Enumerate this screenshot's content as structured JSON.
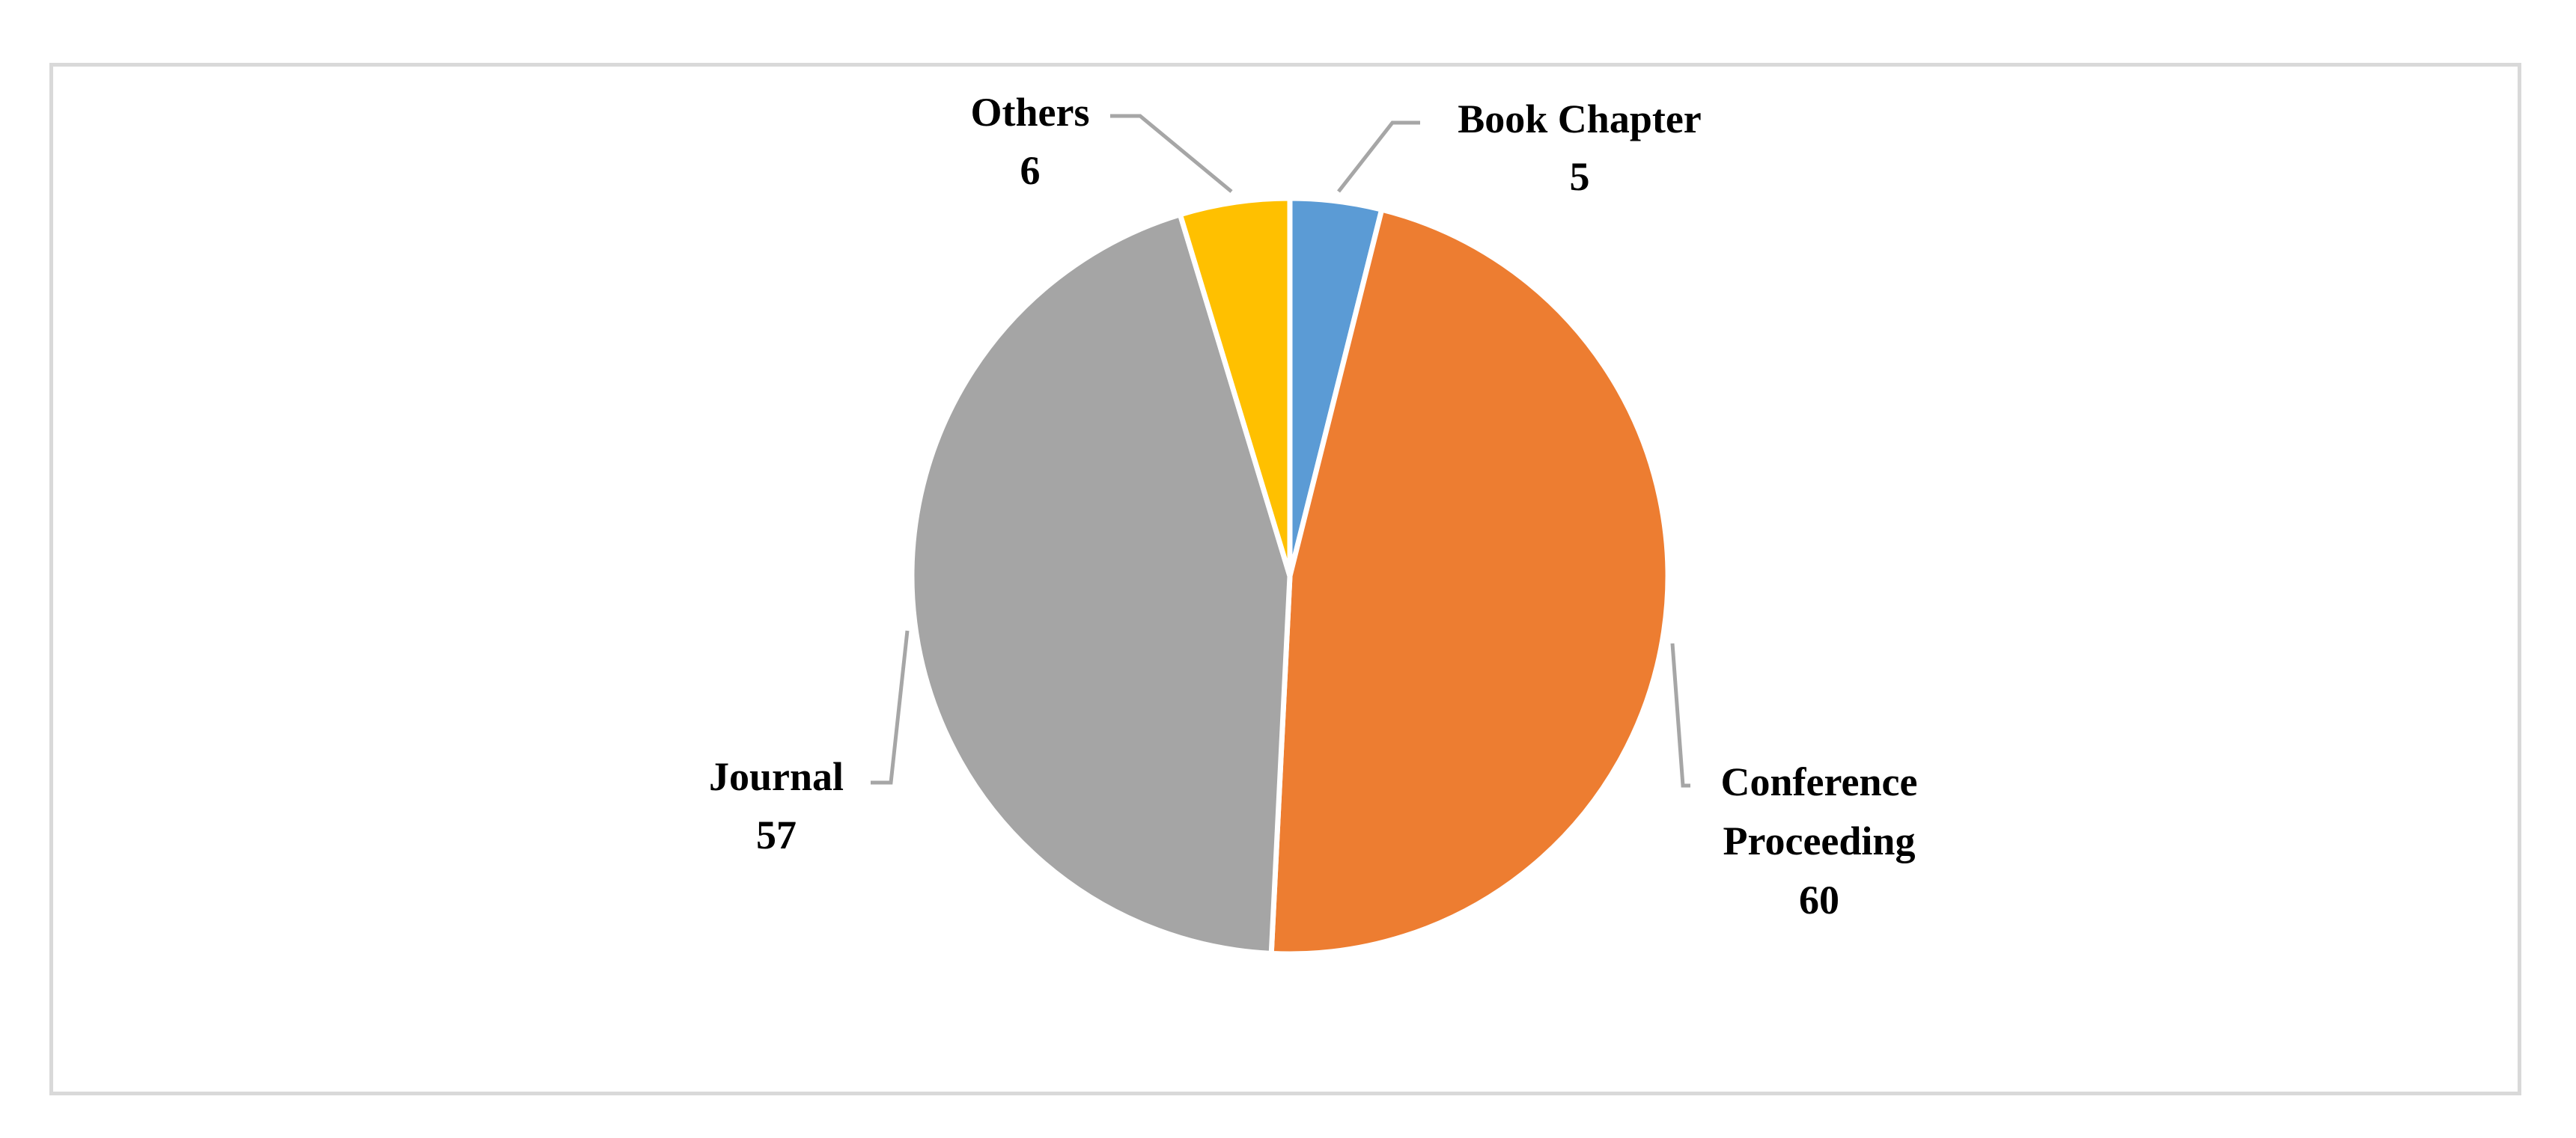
{
  "chart_data": {
    "type": "pie",
    "title": "",
    "categories": [
      "Book Chapter",
      "Conference Proceeding",
      "Journal",
      "Others"
    ],
    "values": [
      5,
      60,
      57,
      6
    ],
    "colors": [
      "#5b9bd5",
      "#ed7d31",
      "#a5a5a5",
      "#ffc000"
    ],
    "start_angle_deg": 0,
    "direction": "clockwise",
    "data_labels": [
      {
        "name_lines": [
          "Book Chapter"
        ],
        "value": "5"
      },
      {
        "name_lines": [
          "Conference",
          "Proceeding"
        ],
        "value": "60"
      },
      {
        "name_lines": [
          "Journal"
        ],
        "value": "57"
      },
      {
        "name_lines": [
          "Others"
        ],
        "value": "6"
      }
    ],
    "legend": "none",
    "leader_line_color": "#a6a6a6",
    "slice_border_color": "#ffffff"
  }
}
